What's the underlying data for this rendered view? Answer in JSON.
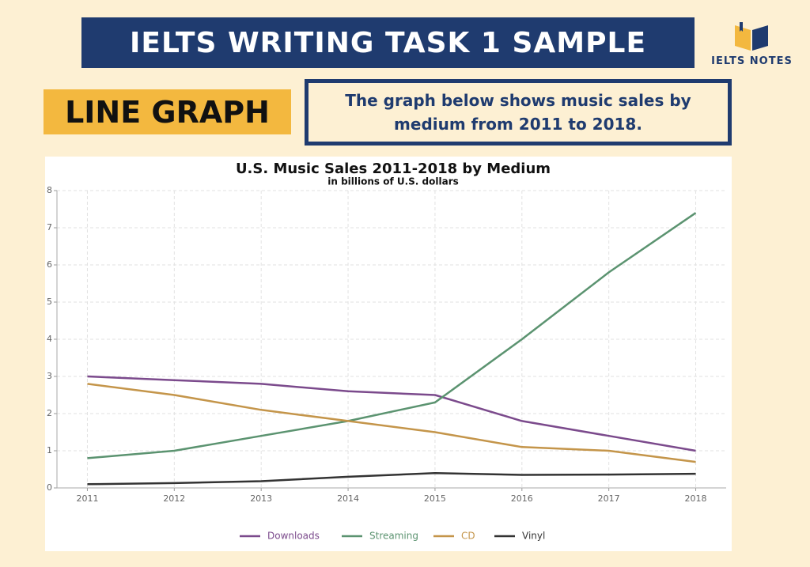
{
  "header": {
    "title": "IELTS WRITING TASK 1 SAMPLE",
    "logo": "IELTS NOTES",
    "label": "LINE GRAPH",
    "description": "The graph below shows music sales by medium from 2011 to 2018."
  },
  "chart_data": {
    "type": "line",
    "title": "U.S. Music Sales 2011-2018 by Medium",
    "subtitle": "in billions of U.S. dollars",
    "x": [
      2011,
      2012,
      2013,
      2014,
      2015,
      2016,
      2017,
      2018
    ],
    "xlim": [
      2010.65,
      2018.35
    ],
    "xticks": [
      2011,
      2012,
      2013,
      2014,
      2015,
      2016,
      2017,
      2018
    ],
    "ylim": [
      0,
      8
    ],
    "yticks": [
      0,
      1,
      2,
      3,
      4,
      5,
      6,
      7,
      8
    ],
    "grid": true,
    "legend": "bottom",
    "series": [
      {
        "name": "Downloads",
        "color": "#7b4a8c",
        "values": [
          3.0,
          2.9,
          2.8,
          2.6,
          2.5,
          1.8,
          1.4,
          1.0
        ]
      },
      {
        "name": "Streaming",
        "color": "#5b9370",
        "values": [
          0.8,
          1.0,
          1.4,
          1.8,
          2.3,
          4.0,
          5.8,
          7.4
        ]
      },
      {
        "name": "CD",
        "color": "#c4954a",
        "values": [
          2.8,
          2.5,
          2.1,
          1.8,
          1.5,
          1.1,
          1.0,
          0.7
        ]
      },
      {
        "name": "Vinyl",
        "color": "#333333",
        "values": [
          0.1,
          0.13,
          0.18,
          0.3,
          0.4,
          0.35,
          0.36,
          0.38
        ]
      }
    ]
  }
}
